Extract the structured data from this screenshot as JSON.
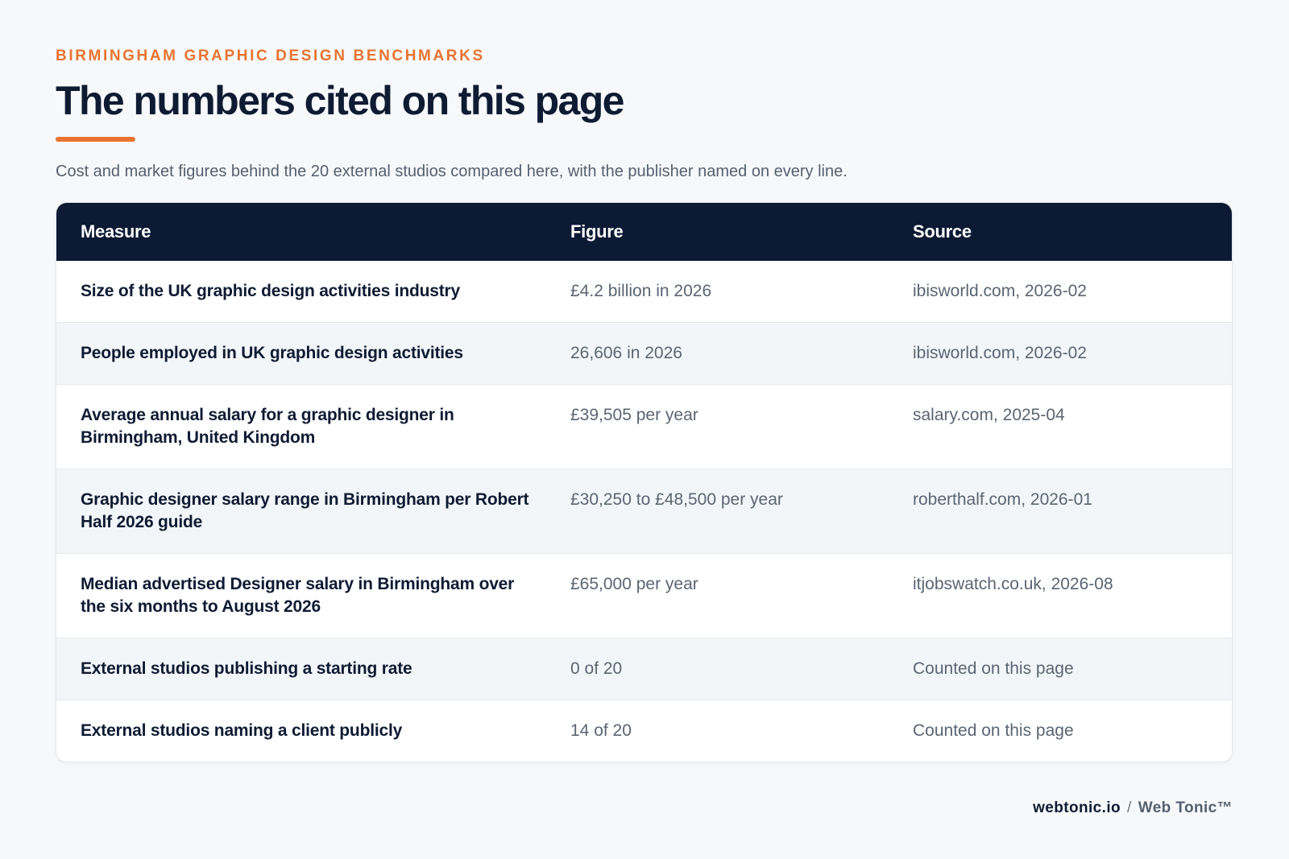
{
  "header": {
    "eyebrow": "BIRMINGHAM GRAPHIC DESIGN BENCHMARKS",
    "title": "The numbers cited on this page",
    "subtitle": "Cost and market figures behind the 20 external studios compared here, with the publisher named on every line.",
    "accent_color": "#e8742f"
  },
  "table": {
    "columns": [
      "Measure",
      "Figure",
      "Source"
    ],
    "rows": [
      {
        "measure": "Size of the UK graphic design activities industry",
        "figure": "£4.2 billion in 2026",
        "source": "ibisworld.com, 2026-02"
      },
      {
        "measure": "People employed in UK graphic design activities",
        "figure": "26,606 in 2026",
        "source": "ibisworld.com, 2026-02"
      },
      {
        "measure": "Average annual salary for a graphic designer in Birmingham, United Kingdom",
        "figure": "£39,505 per year",
        "source": "salary.com, 2025-04"
      },
      {
        "measure": "Graphic designer salary range in Birmingham per Robert Half 2026 guide",
        "figure": "£30,250 to £48,500 per year",
        "source": "roberthalf.com, 2026-01"
      },
      {
        "measure": "Median advertised Designer salary in Birmingham over the six months to August 2026",
        "figure": "£65,000 per year",
        "source": "itjobswatch.co.uk, 2026-08"
      },
      {
        "measure": "External studios publishing a starting rate",
        "figure": "0 of 20",
        "source": "Counted on this page"
      },
      {
        "measure": "External studios naming a client publicly",
        "figure": "14 of 20",
        "source": "Counted on this page"
      }
    ],
    "header_color": "#0c1a34"
  },
  "footer": {
    "domain": "webtonic.io",
    "separator": "/",
    "brand": "Web Tonic™"
  }
}
